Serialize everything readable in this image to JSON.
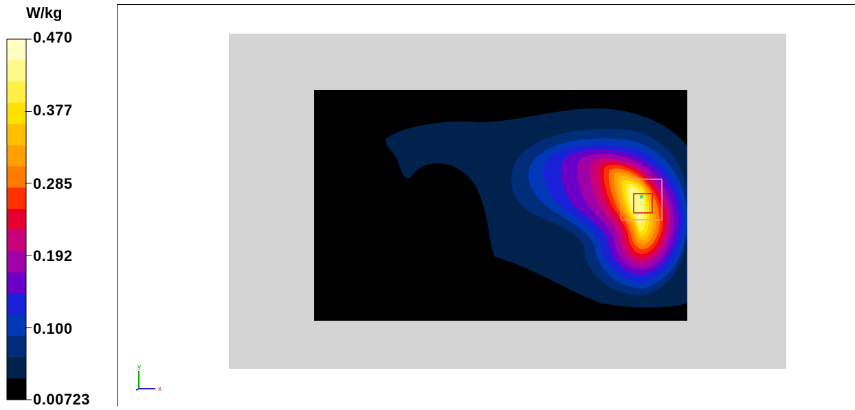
{
  "chart_data": {
    "type": "heatmap",
    "title": "",
    "unit": "W/kg",
    "colorbar": {
      "max": 0.47,
      "min": 0.00723,
      "tick_labels": [
        "0.470",
        "0.377",
        "0.285",
        "0.192",
        "0.100",
        "0.00723"
      ],
      "tick_values": [
        0.47,
        0.377,
        0.285,
        0.192,
        0.1,
        0.00723
      ],
      "colors": [
        "#ffffc4",
        "#fff88a",
        "#fff046",
        "#ffe000",
        "#ffc000",
        "#ffa000",
        "#ff7a00",
        "#ff3000",
        "#e60030",
        "#c8007a",
        "#a000a8",
        "#6a00c8",
        "#1a20d8",
        "#0038b8",
        "#002c7a",
        "#00224c",
        "#000000"
      ]
    },
    "hotspot_approx": {
      "peak_value": 0.47
    },
    "axes_indicator": {
      "x": "x",
      "y": "y"
    }
  }
}
